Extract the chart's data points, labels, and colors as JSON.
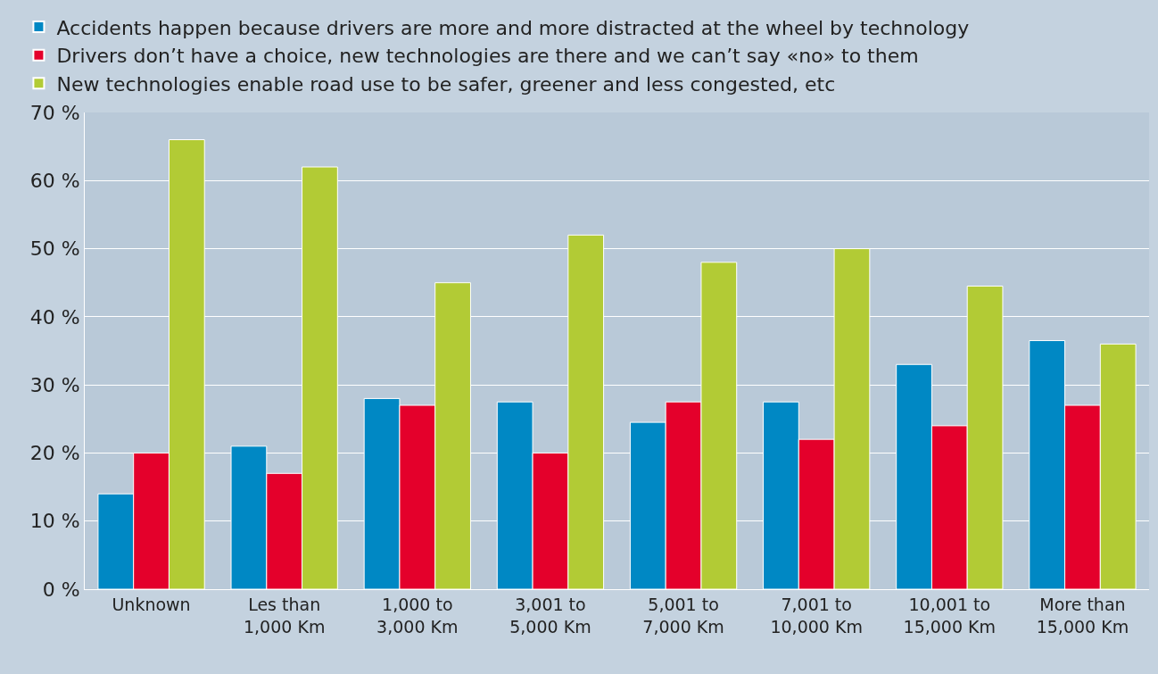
{
  "chart_data": {
    "type": "bar",
    "categories": [
      "Unknown",
      "Les than\n1,000 Km",
      "1,000 to\n3,000 Km",
      "3,001 to\n5,000 Km",
      "5,001 to\n7,000 Km",
      "7,001 to\n10,000 Km",
      "10,001 to\n15,000 Km",
      "More than\n15,000 Km"
    ],
    "series": [
      {
        "name": "Accidents happen because drivers are more and more distracted at the wheel by technology",
        "color": "#0088c4",
        "values": [
          14,
          21,
          28,
          27.5,
          24.5,
          27.5,
          33,
          36.5
        ]
      },
      {
        "name": "Drivers don’t have a choice, new technologies are there and we can’t say «no» to them",
        "color": "#e4002b",
        "values": [
          20,
          17,
          27,
          20,
          27.5,
          22,
          24,
          27
        ]
      },
      {
        "name": "New technologies enable road use to be safer, greener and less congested, etc",
        "color": "#b2cb35",
        "values": [
          66,
          62,
          45,
          52,
          48,
          50,
          44.5,
          36
        ]
      }
    ],
    "ylim": [
      0,
      70
    ],
    "yticks": [
      {
        "value": 0,
        "label": "0 %"
      },
      {
        "value": 10,
        "label": "10 %"
      },
      {
        "value": 20,
        "label": "20 %"
      },
      {
        "value": 30,
        "label": "30 %"
      },
      {
        "value": 40,
        "label": "40 %"
      },
      {
        "value": 50,
        "label": "50 %"
      },
      {
        "value": 60,
        "label": "60 %"
      },
      {
        "value": 70,
        "label": "70 %"
      }
    ],
    "grid": "y",
    "legend": "top left"
  }
}
